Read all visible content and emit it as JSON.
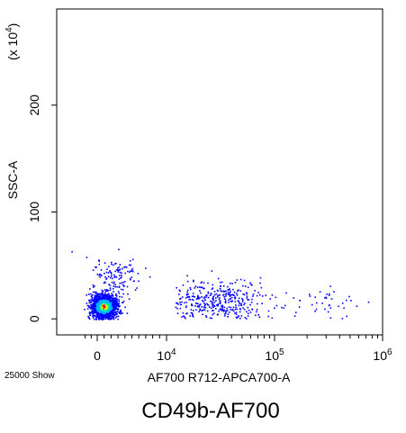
{
  "figure": {
    "events_label": "25000 Show",
    "caption": "CD49b-AF700"
  },
  "chart_data": {
    "type": "scatter",
    "subtype": "flow-cytometry density dot plot",
    "xlabel": "AF700 R712-APCA700-A",
    "ylabel": "SSC-A",
    "y_multiplier": "(x 10",
    "y_multiplier_exp": "4",
    "y_multiplier_close": ")",
    "x_scale": "logicle",
    "x_ticks": [
      {
        "value": 0,
        "base": "0",
        "exp": ""
      },
      {
        "value": 10000,
        "base": "10",
        "exp": "4"
      },
      {
        "value": 100000,
        "base": "10",
        "exp": "5"
      },
      {
        "value": 1000000,
        "base": "10",
        "exp": "6"
      }
    ],
    "y_ticks": [
      0,
      100,
      200
    ],
    "ylim": [
      -15,
      290
    ],
    "grid": false,
    "legend": "none",
    "density_colors": [
      "#0000ff",
      "#00b4ff",
      "#00ff90",
      "#ffff00",
      "#ff0000"
    ],
    "clusters": [
      {
        "name": "core",
        "x_center": 900,
        "x_spread": 1800,
        "y_center": 12,
        "y_spread": 10,
        "count": 1500
      },
      {
        "name": "tail",
        "x_center": 12000,
        "x_spread": 40000,
        "y_center": 18,
        "y_spread": 16,
        "count": 380
      },
      {
        "name": "upper",
        "x_center": 2500,
        "x_spread": 3500,
        "y_center": 42,
        "y_spread": 14,
        "count": 120
      },
      {
        "name": "far",
        "x_center": 150000,
        "x_spread": 300000,
        "y_center": 15,
        "y_spread": 12,
        "count": 40
      }
    ]
  }
}
